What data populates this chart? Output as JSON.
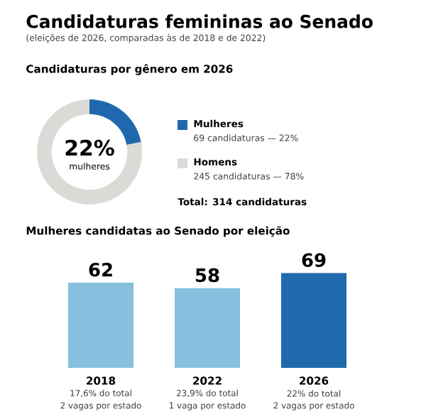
{
  "chart_data": [
    {
      "type": "donut",
      "title": "Candidaturas femininas ao Senado",
      "subtitle": "(eleições de 2026, comparadas às de 2018 e de 2022)",
      "categories": [
        "Mulheres",
        "Homens"
      ],
      "values": [
        69,
        245
      ],
      "colors": [
        "#2068ae",
        "#dcdad6"
      ],
      "value_labels": [
        "69 candidaturas — 22%",
        "245 candidaturas — 78%"
      ],
      "legend": "right",
      "annotations": [
        "Candidaturas por gênero em 2026",
        "22%",
        "mulheres",
        "Total: 314 candidaturas"
      ]
    },
    {
      "type": "bar",
      "title": "Mulheres candidatas ao Senado por eleição",
      "categories": [
        "2018",
        "2022",
        "2026"
      ],
      "values": [
        62,
        58,
        69
      ],
      "colors": [
        "#86c0de",
        "#86c0de",
        "#1f6aad"
      ],
      "data_labels": true,
      "annotations": [
        "17,6% do total",
        "2 vagas por estado",
        "23,9% do total",
        "1 vaga por estado",
        "22% do total",
        "2 vagas por estado"
      ]
    }
  ]
}
